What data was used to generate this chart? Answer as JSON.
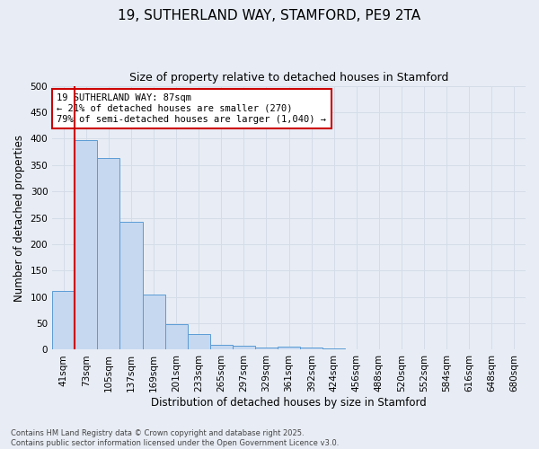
{
  "title_line1": "19, SUTHERLAND WAY, STAMFORD, PE9 2TA",
  "title_line2": "Size of property relative to detached houses in Stamford",
  "xlabel": "Distribution of detached houses by size in Stamford",
  "ylabel": "Number of detached properties",
  "footer_line1": "Contains HM Land Registry data © Crown copyright and database right 2025.",
  "footer_line2": "Contains public sector information licensed under the Open Government Licence v3.0.",
  "categories": [
    "41sqm",
    "73sqm",
    "105sqm",
    "137sqm",
    "169sqm",
    "201sqm",
    "233sqm",
    "265sqm",
    "297sqm",
    "329sqm",
    "361sqm",
    "392sqm",
    "424sqm",
    "456sqm",
    "488sqm",
    "520sqm",
    "552sqm",
    "584sqm",
    "616sqm",
    "648sqm",
    "680sqm"
  ],
  "values": [
    111,
    398,
    363,
    242,
    104,
    49,
    29,
    9,
    7,
    5,
    6,
    5,
    2,
    1,
    1,
    1,
    0,
    0,
    0,
    0,
    1
  ],
  "bar_color": "#c5d8f0",
  "bar_edge_color": "#5b9bd5",
  "property_line_x": 1.0,
  "annotation_text_line1": "19 SUTHERLAND WAY: 87sqm",
  "annotation_text_line2": "← 21% of detached houses are smaller (270)",
  "annotation_text_line3": "79% of semi-detached houses are larger (1,040) →",
  "annotation_box_color": "#ffffff",
  "annotation_box_edge": "#cc0000",
  "vline_color": "#cc0000",
  "grid_color": "#d4dce8",
  "background_color": "#e8edf5",
  "ylim": [
    0,
    500
  ],
  "yticks": [
    0,
    50,
    100,
    150,
    200,
    250,
    300,
    350,
    400,
    450,
    500
  ]
}
